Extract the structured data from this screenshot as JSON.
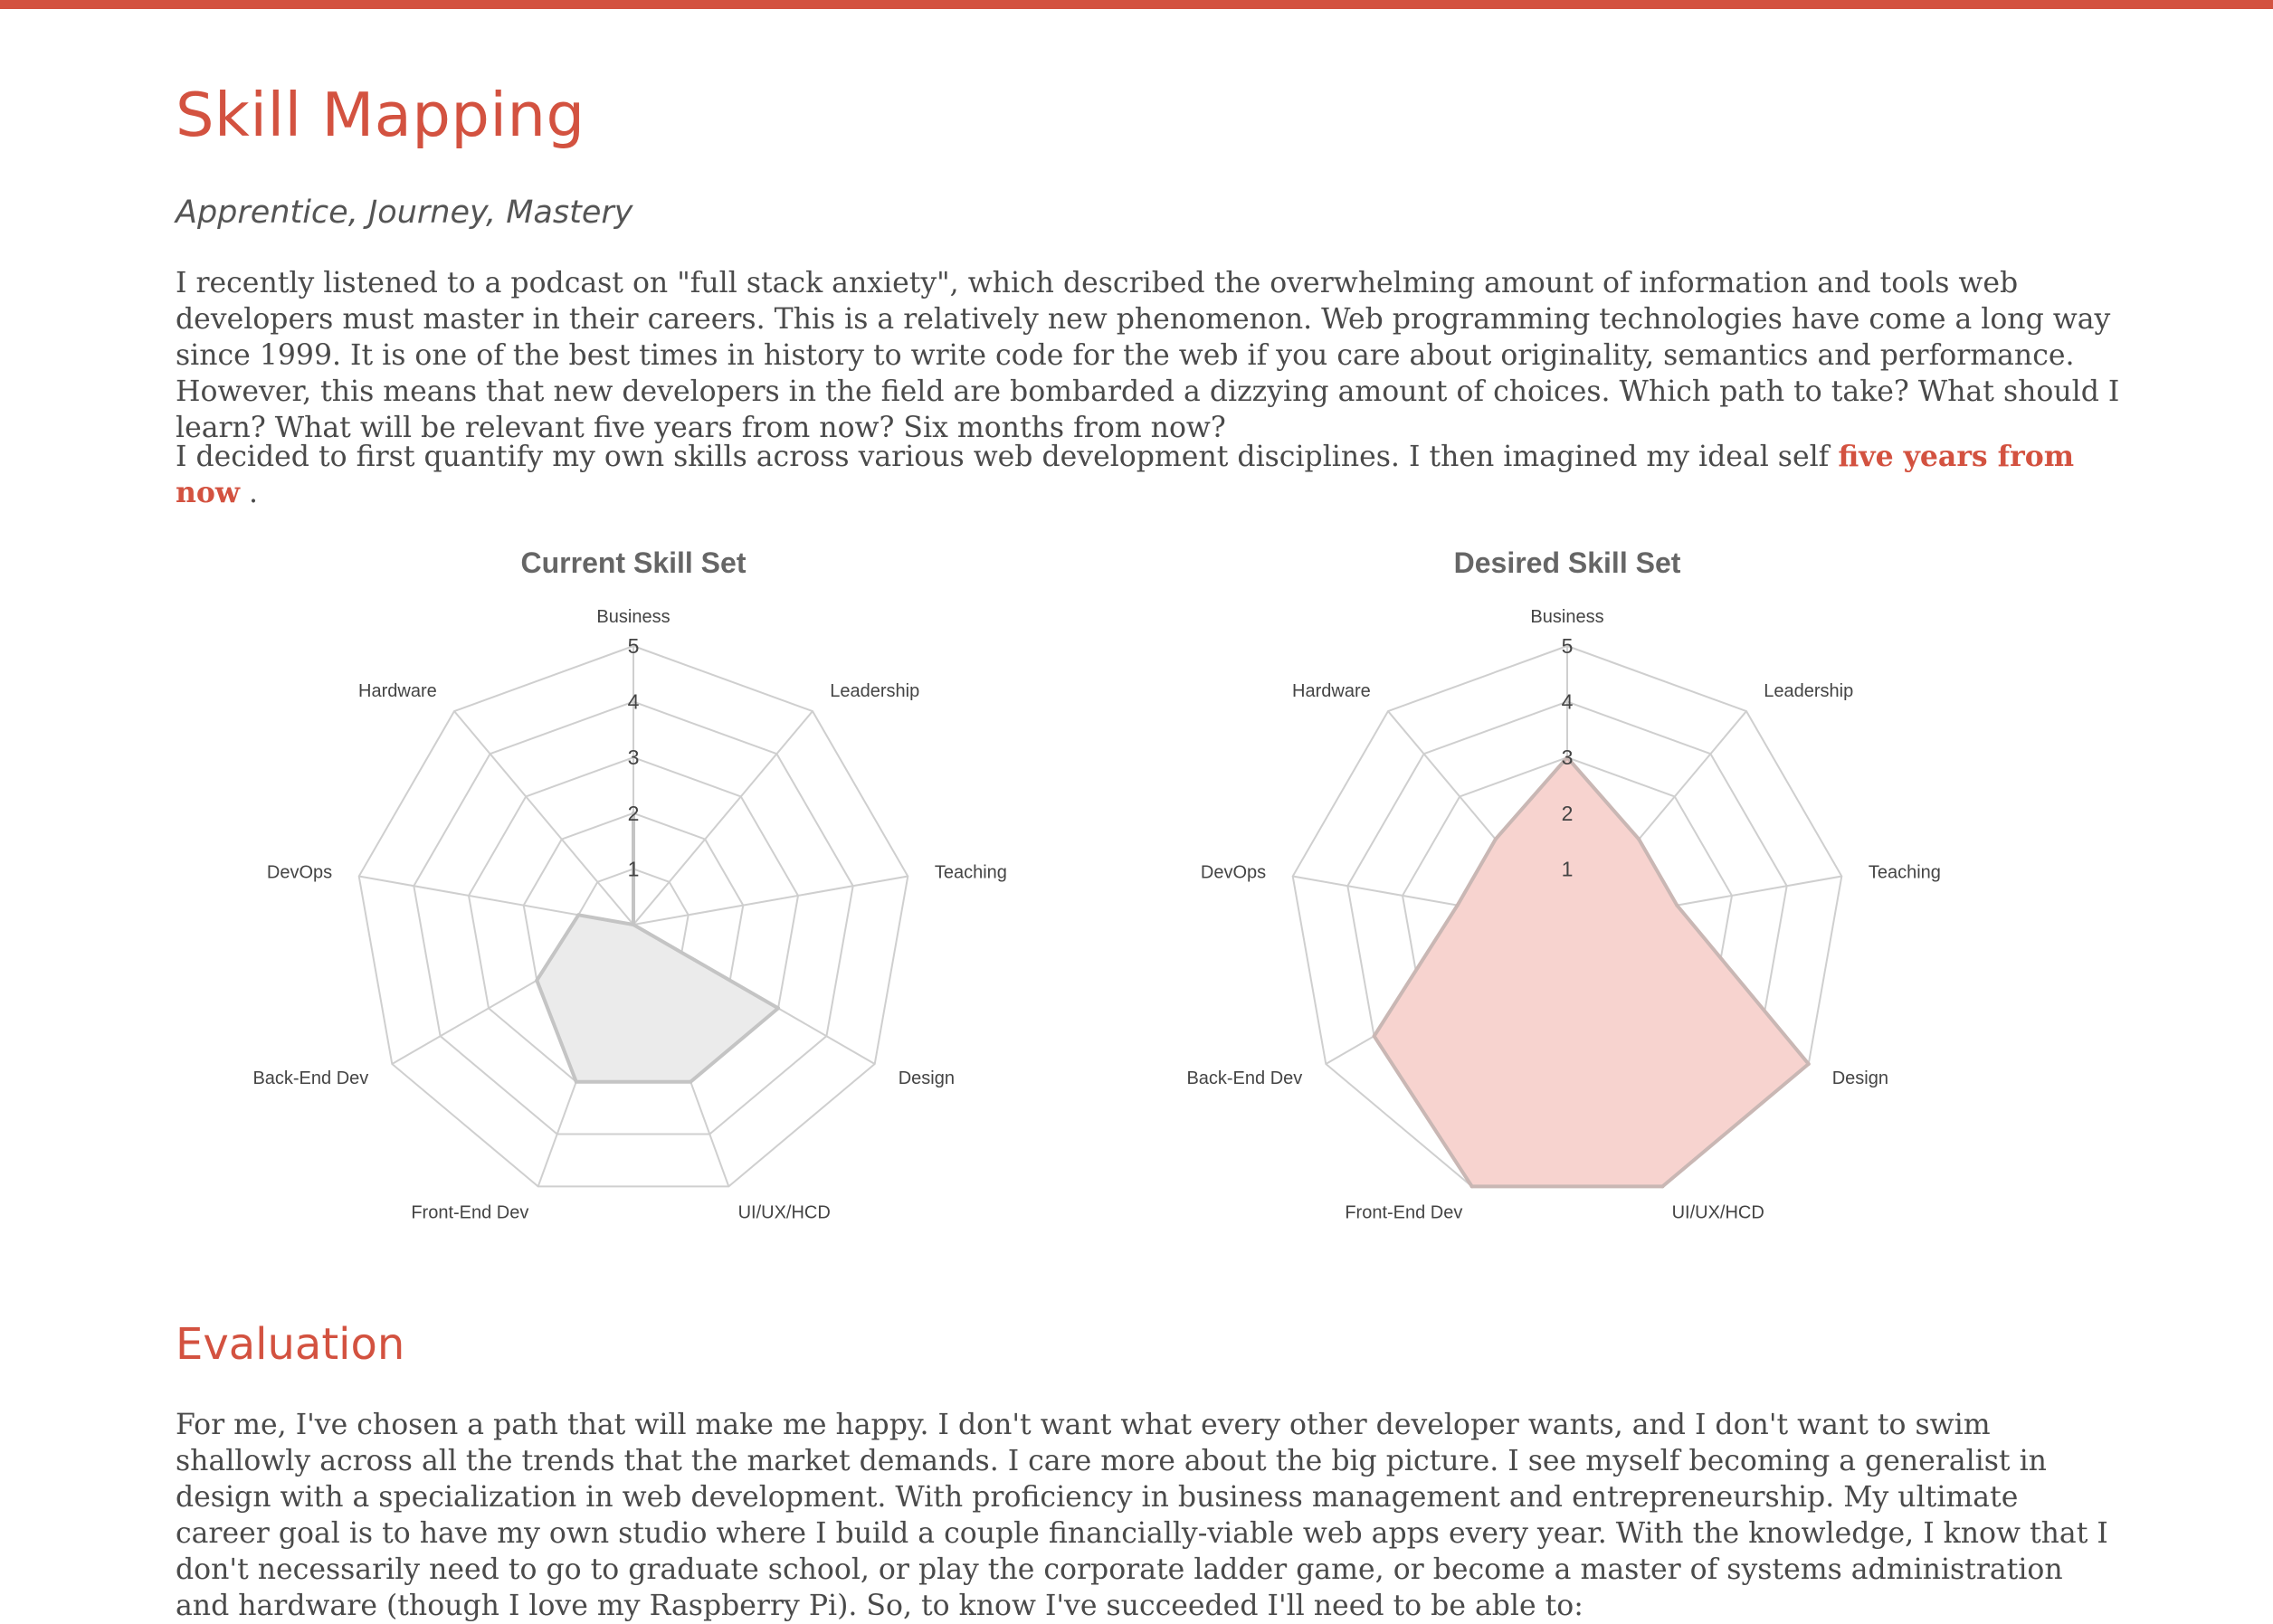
{
  "page": {
    "title": "Skill Mapping",
    "subtitle": "Apprentice, Journey, Mastery",
    "intro_p1": "I recently listened to a podcast on \"full stack anxiety\", which described the overwhelming amount of information and tools web developers must master in their careers. This is a relatively new phenomenon. Web programming technologies have come a long way since 1999. It is one of the best times in history to write code for the web if you care about originality, semantics and performance. However, this means that new developers in the field are bombarded a dizzying amount of choices. Which path to take? What should I learn? What will be relevant five years from now? Six months from now?",
    "intro_p2_before": "I decided to first quantify my own skills across various web development disciplines. I then imagined my ideal self ",
    "intro_p2_link": "five years from now",
    "intro_p2_after": " .",
    "evaluation_heading": "Evaluation",
    "evaluation_p": "For me, I've chosen a path that will make me happy. I don't want what every other developer wants, and I don't want to swim shallowly across all the trends that the market demands. I care more about the big picture. I see myself becoming a generalist in design with a specialization in web development. With proficiency in business management and entrepreneurship. My ultimate career goal is to have my own studio where I build a couple financially-viable web apps every year. With the knowledge, I know that I don't necessarily need to go to graduate school, or play the corporate ladder game, or become a master of systems administration and hardware (though I love my Raspberry Pi). So, to know I've succeeded I'll need to be able to:"
  },
  "colors": {
    "accent": "#d35240",
    "current_fill": "#ebebeb",
    "current_stroke": "#c4c4c4",
    "desired_fill": "#f7d3cf",
    "desired_stroke": "#c9b7b4",
    "grid": "#cfcfcf"
  },
  "chart_data": [
    {
      "type": "radar",
      "title": "Current Skill Set",
      "axes": [
        "Business",
        "Leadership",
        "Teaching",
        "Design",
        "UI/UX/HCD",
        "Front-End Dev",
        "Back-End Dev",
        "DevOps",
        "Hardware"
      ],
      "ticks": [
        "1",
        "2",
        "3",
        "4",
        "5"
      ],
      "range": [
        0,
        5
      ],
      "values": [
        2,
        0,
        0,
        3,
        3,
        3,
        2,
        1,
        0
      ]
    },
    {
      "type": "radar",
      "title": "Desired Skill Set",
      "axes": [
        "Business",
        "Leadership",
        "Teaching",
        "Design",
        "UI/UX/HCD",
        "Front-End Dev",
        "Back-End Dev",
        "DevOps",
        "Hardware"
      ],
      "ticks": [
        "1",
        "2",
        "3",
        "4",
        "5"
      ],
      "range": [
        0,
        5
      ],
      "values": [
        3,
        2,
        2,
        5,
        5,
        5,
        4,
        2,
        2
      ]
    }
  ]
}
